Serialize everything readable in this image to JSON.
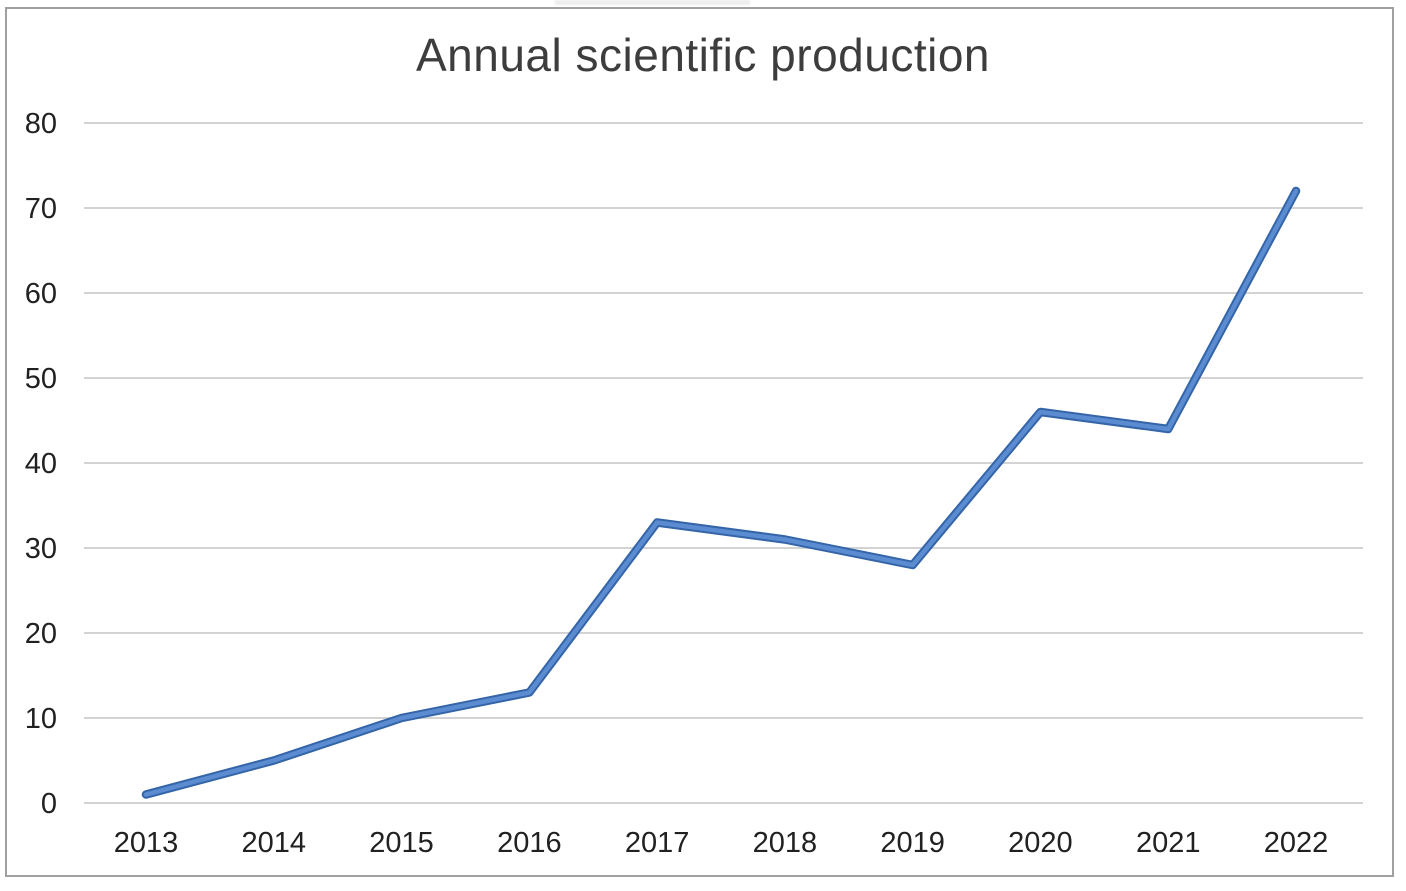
{
  "figure": {
    "frame_border_color": "#a0a0a0",
    "background_color": "#ffffff"
  },
  "chart_data": {
    "type": "line",
    "title": "Annual scientific production",
    "categories": [
      "2013",
      "2014",
      "2015",
      "2016",
      "2017",
      "2018",
      "2019",
      "2020",
      "2021",
      "2022"
    ],
    "values": [
      1,
      5,
      10,
      13,
      33,
      31,
      28,
      46,
      44,
      72
    ],
    "xlabel": "",
    "ylabel": "",
    "ylim": [
      0,
      80
    ],
    "yticks": [
      0,
      10,
      20,
      30,
      40,
      50,
      60,
      70,
      80
    ],
    "grid": "horizontal",
    "legend": "none",
    "line_color": "#5b8bd0",
    "line_edge_color": "#3465a8",
    "gridline_color": "#d3d3d3",
    "title_color": "#3d3d3d",
    "axis_label_color": "#212121"
  }
}
